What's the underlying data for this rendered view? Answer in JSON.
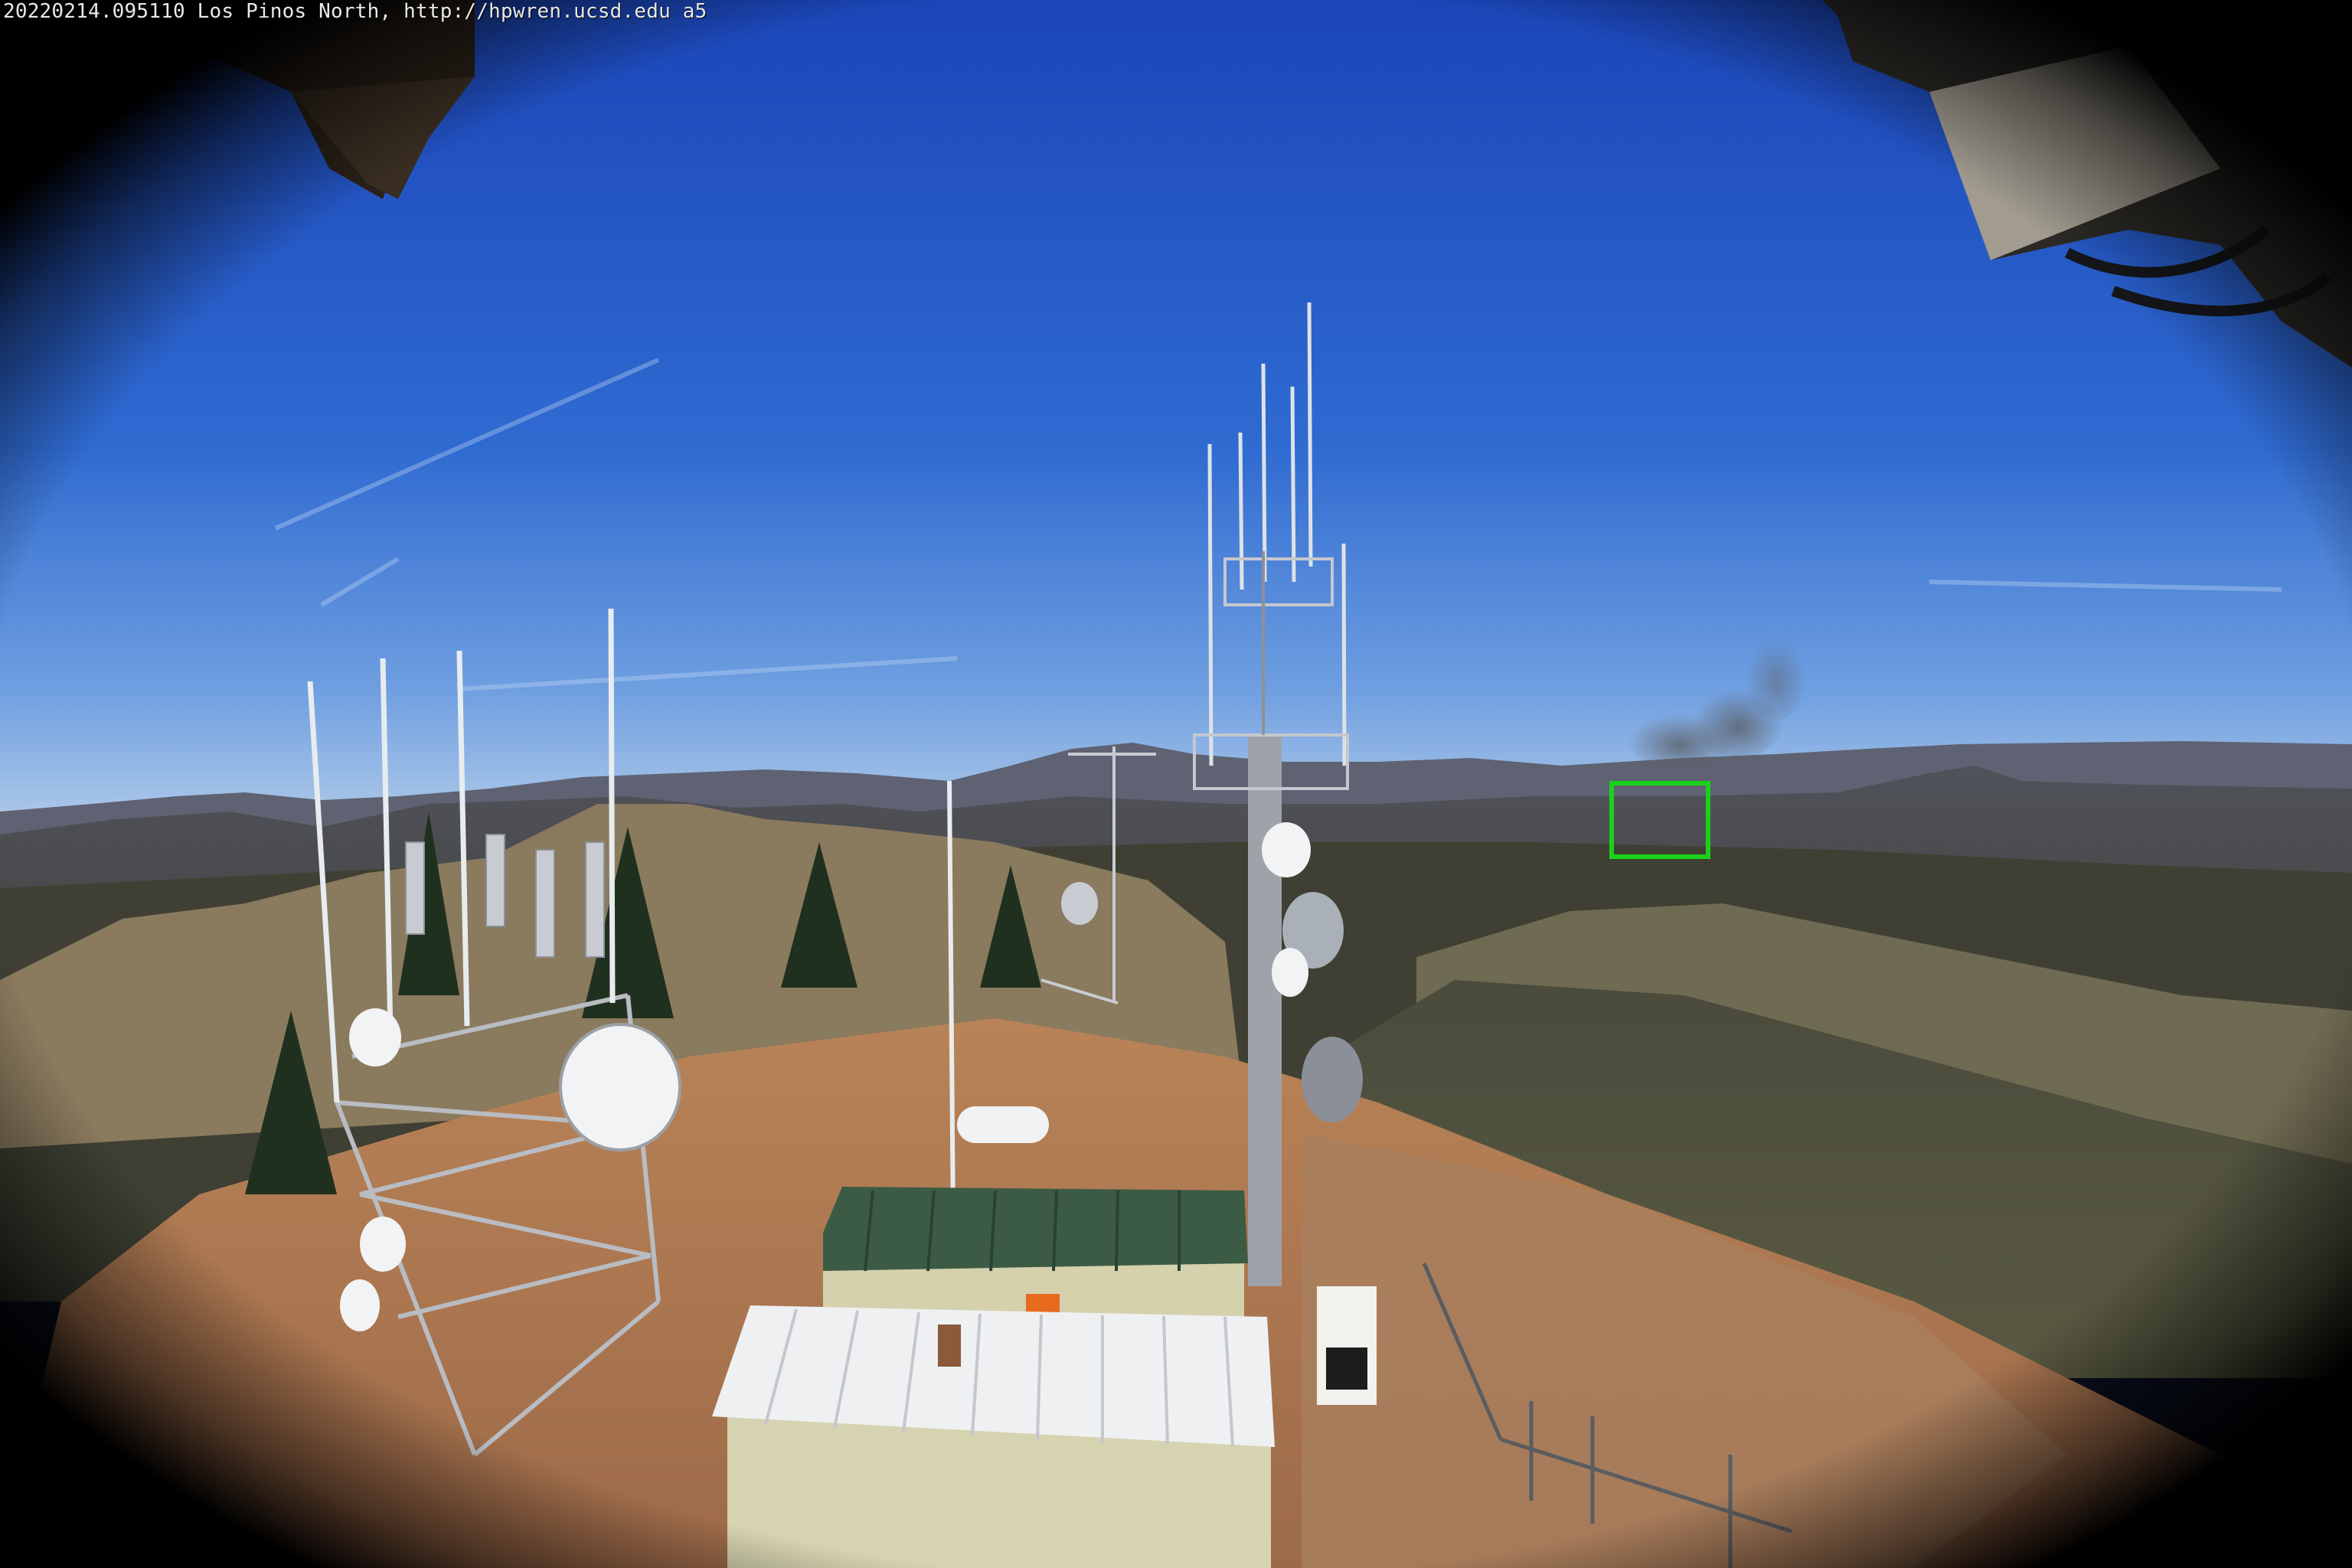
{
  "overlay": {
    "caption": "20220214.095110 Los Pinos North, http://hpwren.ucsd.edu a5"
  },
  "detection": {
    "box_color": "#19d219"
  },
  "scene": {
    "sky_top": "#1f4fc2",
    "sky_horizon": "#9dc0e6",
    "ground_dirt": "#b57a52",
    "vignette": "#000000"
  }
}
